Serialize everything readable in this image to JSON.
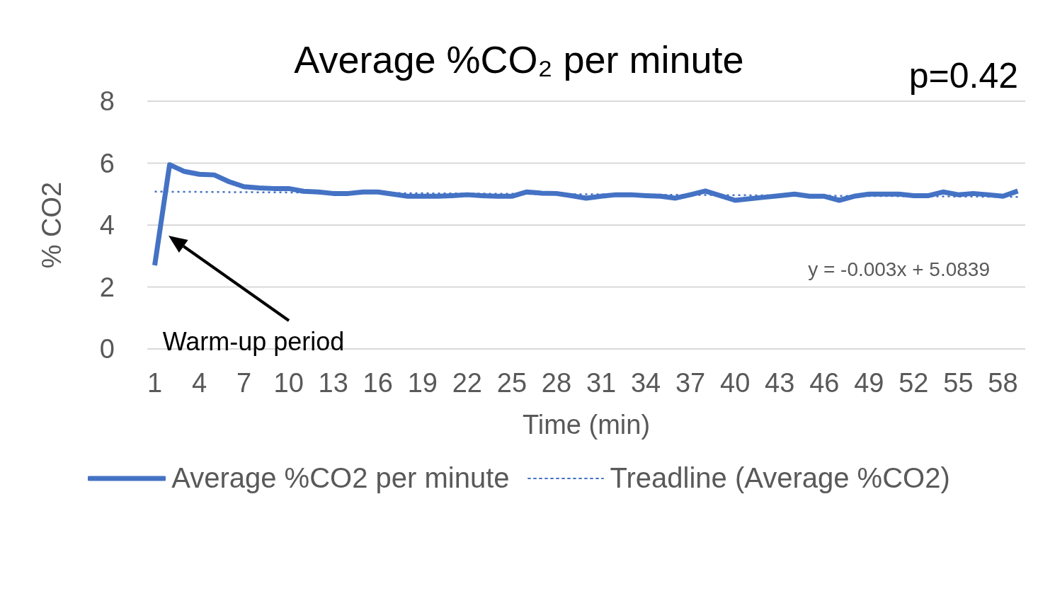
{
  "chart_data": {
    "type": "line",
    "title": "Average %CO₂ per minute",
    "xlabel": "Time (min)",
    "ylabel": "% CO2",
    "x": [
      1,
      2,
      3,
      4,
      5,
      6,
      7,
      8,
      9,
      10,
      11,
      12,
      13,
      14,
      15,
      16,
      17,
      18,
      19,
      20,
      21,
      22,
      23,
      24,
      25,
      26,
      27,
      28,
      29,
      30,
      31,
      32,
      33,
      34,
      35,
      36,
      37,
      38,
      39,
      40,
      41,
      42,
      43,
      44,
      45,
      46,
      47,
      48,
      49,
      50,
      51,
      52,
      53,
      54,
      55,
      56,
      57,
      58,
      59
    ],
    "series": [
      {
        "name": "Average %CO2 per minute",
        "color": "#4472c4",
        "line_style": "solid",
        "values": [
          2.7,
          5.95,
          5.73,
          5.64,
          5.62,
          5.4,
          5.24,
          5.2,
          5.18,
          5.18,
          5.09,
          5.07,
          5.02,
          5.02,
          5.07,
          5.07,
          5.0,
          4.93,
          4.93,
          4.93,
          4.95,
          4.98,
          4.95,
          4.93,
          4.93,
          5.07,
          5.03,
          5.02,
          4.95,
          4.87,
          4.93,
          4.98,
          4.98,
          4.95,
          4.93,
          4.87,
          4.98,
          5.1,
          4.95,
          4.8,
          4.85,
          4.9,
          4.95,
          5.0,
          4.93,
          4.93,
          4.8,
          4.93,
          5.0,
          5.0,
          5.0,
          4.95,
          4.95,
          5.07,
          4.98,
          5.02,
          4.98,
          4.93,
          5.1
        ]
      },
      {
        "name": "Treadline (Average %CO2)",
        "color": "#4472c4",
        "type": "line",
        "line_style": "dotted",
        "x": [
          1,
          59
        ],
        "values": [
          5.08,
          4.91
        ]
      }
    ],
    "xlim": [
      0.5,
      59.5
    ],
    "xticks": [
      1,
      4,
      7,
      10,
      13,
      16,
      19,
      22,
      25,
      28,
      31,
      34,
      37,
      40,
      43,
      46,
      49,
      52,
      55,
      58
    ],
    "ylim": [
      0,
      8
    ],
    "yticks": [
      0,
      2,
      4,
      6,
      8
    ],
    "grid": "y",
    "legend": "bottom",
    "marker": "none",
    "annotations": [
      "p=0.42",
      "y = -0.003x + 5.0839",
      "Warm-up period"
    ]
  }
}
